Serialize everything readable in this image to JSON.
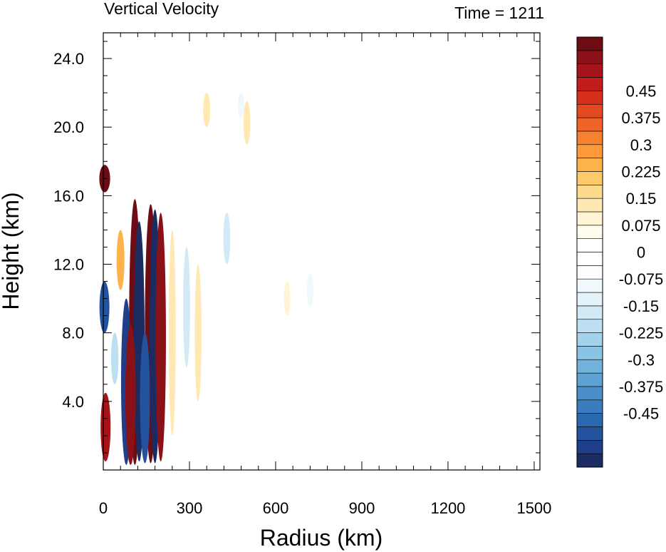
{
  "chart_data": {
    "type": "heatmap",
    "title": "Vertical Velocity",
    "subtitle": "Time = 1211",
    "xlabel": "Radius (km)",
    "ylabel": "Height (km)",
    "xlim": [
      0,
      1520
    ],
    "ylim": [
      0,
      25.5
    ],
    "x_ticks": [
      0,
      300,
      600,
      900,
      1200,
      1500
    ],
    "x_tick_labels": [
      "0",
      "300",
      "600",
      "900",
      "1200",
      "1500"
    ],
    "y_ticks": [
      4,
      8,
      12,
      16,
      20,
      24
    ],
    "y_tick_labels": [
      "4.0",
      "8.0",
      "12.0",
      "16.0",
      "20.0",
      "24.0"
    ],
    "colorbar": {
      "levels": [
        -0.5625,
        -0.525,
        -0.4875,
        -0.45,
        -0.4125,
        -0.375,
        -0.3375,
        -0.3,
        -0.2625,
        -0.225,
        -0.1875,
        -0.15,
        -0.1125,
        -0.075,
        -0.0375,
        0,
        0.0375,
        0.075,
        0.1125,
        0.15,
        0.1875,
        0.225,
        0.2625,
        0.3,
        0.3375,
        0.375,
        0.4125,
        0.45,
        0.4875,
        0.525,
        0.5625
      ],
      "colors": [
        "#1b2c62",
        "#1f3f8a",
        "#23539f",
        "#2a68b0",
        "#3a7cbd",
        "#4a8fc8",
        "#5da2d2",
        "#73b3db",
        "#8bc3e4",
        "#a4d2ea",
        "#bcdff1",
        "#d2eaf6",
        "#e4f2f9",
        "#f1f8fc",
        "#fbfdfe",
        "#ffffff",
        "#ffffff",
        "#fffcee",
        "#fff5d5",
        "#fee9b3",
        "#fedb8c",
        "#fdc969",
        "#fdb24c",
        "#fc9a3a",
        "#f8812f",
        "#ef6428",
        "#e34a22",
        "#d6301d",
        "#c21d1b",
        "#a6141a",
        "#8a1117",
        "#6d0c12"
      ],
      "tick_values": [
        -0.45,
        -0.375,
        -0.3,
        -0.225,
        -0.15,
        -0.075,
        0,
        0.075,
        0.15,
        0.225,
        0.3,
        0.375,
        0.45
      ],
      "tick_labels": [
        "-0.45",
        "-0.375",
        "-0.3",
        "-0.225",
        "-0.15",
        "-0.075",
        "0",
        "0.075",
        "0.15",
        "0.225",
        "0.3",
        "0.375",
        "0.45"
      ]
    },
    "features": [
      {
        "r": 110,
        "z0": 0.3,
        "z1": 15.8,
        "w": 0.7
      },
      {
        "r": 125,
        "z0": 0.5,
        "z1": 14.5,
        "w": -0.6
      },
      {
        "r": 165,
        "z0": 0.4,
        "z1": 15.5,
        "w": 0.7
      },
      {
        "r": 180,
        "z0": 0.4,
        "z1": 15.2,
        "w": -0.6
      },
      {
        "r": 200,
        "z0": 0.5,
        "z1": 15.0,
        "w": 0.55
      },
      {
        "r": 80,
        "z0": 0.3,
        "z1": 10.0,
        "w": -0.55
      },
      {
        "r": 95,
        "z0": 0.3,
        "z1": 8.5,
        "w": 0.55
      },
      {
        "r": 145,
        "z0": 0.4,
        "z1": 8.0,
        "w": -0.5
      },
      {
        "r": 8,
        "z0": 0.5,
        "z1": 4.5,
        "w": 0.5
      },
      {
        "r": 5,
        "z0": 16.2,
        "z1": 17.8,
        "w": 0.6
      },
      {
        "r": 4,
        "z0": 8.0,
        "z1": 11.0,
        "w": -0.5
      },
      {
        "r": 60,
        "z0": 10.5,
        "z1": 14.0,
        "w": 0.25
      },
      {
        "r": 40,
        "z0": 5.0,
        "z1": 8.0,
        "w": -0.2
      },
      {
        "r": 240,
        "z0": 2.0,
        "z1": 14.0,
        "w": 0.15
      },
      {
        "r": 290,
        "z0": 6.0,
        "z1": 13.0,
        "w": -0.15
      },
      {
        "r": 330,
        "z0": 4.0,
        "z1": 12.0,
        "w": 0.12
      },
      {
        "r": 430,
        "z0": 12.0,
        "z1": 15.0,
        "w": -0.15
      },
      {
        "r": 360,
        "z0": 20.0,
        "z1": 22.0,
        "w": 0.15
      },
      {
        "r": 500,
        "z0": 19.0,
        "z1": 21.5,
        "w": 0.12
      },
      {
        "r": 480,
        "z0": 20.5,
        "z1": 22.0,
        "w": -0.1
      },
      {
        "r": 640,
        "z0": 9.0,
        "z1": 11.0,
        "w": 0.08
      },
      {
        "r": 720,
        "z0": 9.5,
        "z1": 11.5,
        "w": -0.08
      }
    ]
  }
}
